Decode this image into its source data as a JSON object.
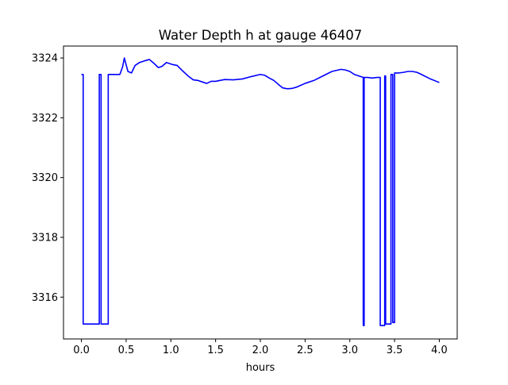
{
  "chart_data": {
    "type": "line",
    "title": "Water Depth h at gauge 46407",
    "xlabel": "hours",
    "ylabel": "",
    "xlim": [
      -0.2,
      4.2
    ],
    "ylim": [
      3314.6,
      3324.4
    ],
    "x_ticks": [
      0.0,
      0.5,
      1.0,
      1.5,
      2.0,
      2.5,
      3.0,
      3.5,
      4.0
    ],
    "x_tick_labels": [
      "0.0",
      "0.5",
      "1.0",
      "1.5",
      "2.0",
      "2.5",
      "3.0",
      "3.5",
      "4.0"
    ],
    "y_ticks": [
      3316,
      3318,
      3320,
      3322,
      3324
    ],
    "y_tick_labels": [
      "3316",
      "3318",
      "3320",
      "3322",
      "3324"
    ],
    "grid": false,
    "legend": "none",
    "series": [
      {
        "color": "#0000ff",
        "x": [
          0.0,
          0.02,
          0.02,
          0.2,
          0.2,
          0.22,
          0.22,
          0.3,
          0.3,
          0.43,
          0.46,
          0.48,
          0.52,
          0.56,
          0.6,
          0.65,
          0.7,
          0.76,
          0.8,
          0.86,
          0.9,
          0.95,
          0.98,
          1.02,
          1.07,
          1.12,
          1.2,
          1.25,
          1.3,
          1.35,
          1.4,
          1.45,
          1.5,
          1.55,
          1.6,
          1.7,
          1.8,
          1.9,
          2.0,
          2.05,
          2.1,
          2.15,
          2.2,
          2.25,
          2.3,
          2.35,
          2.4,
          2.5,
          2.6,
          2.7,
          2.8,
          2.9,
          2.95,
          3.0,
          3.05,
          3.1,
          3.15,
          3.15,
          3.16,
          3.16,
          3.2,
          3.25,
          3.3,
          3.34,
          3.34,
          3.39,
          3.39,
          3.4,
          3.4,
          3.46,
          3.46,
          3.48,
          3.48,
          3.5,
          3.5,
          3.55,
          3.6,
          3.65,
          3.7,
          3.75,
          3.8,
          3.9,
          4.0
        ],
        "y": [
          3323.45,
          3323.45,
          3315.1,
          3315.1,
          3323.45,
          3323.45,
          3315.1,
          3315.1,
          3323.45,
          3323.45,
          3323.7,
          3324.0,
          3323.55,
          3323.5,
          3323.75,
          3323.85,
          3323.9,
          3323.95,
          3323.85,
          3323.68,
          3323.72,
          3323.85,
          3323.82,
          3323.78,
          3323.75,
          3323.6,
          3323.38,
          3323.27,
          3323.25,
          3323.2,
          3323.15,
          3323.22,
          3323.22,
          3323.25,
          3323.28,
          3323.27,
          3323.3,
          3323.38,
          3323.45,
          3323.42,
          3323.33,
          3323.25,
          3323.12,
          3323.0,
          3322.97,
          3322.98,
          3323.02,
          3323.15,
          3323.25,
          3323.4,
          3323.55,
          3323.62,
          3323.6,
          3323.55,
          3323.45,
          3323.4,
          3323.35,
          3315.05,
          3315.05,
          3323.35,
          3323.35,
          3323.33,
          3323.35,
          3323.35,
          3315.05,
          3315.05,
          3323.4,
          3323.4,
          3315.1,
          3315.1,
          3323.45,
          3323.45,
          3315.15,
          3315.15,
          3323.5,
          3323.5,
          3323.52,
          3323.55,
          3323.55,
          3323.52,
          3323.45,
          3323.3,
          3323.18
        ]
      }
    ]
  }
}
